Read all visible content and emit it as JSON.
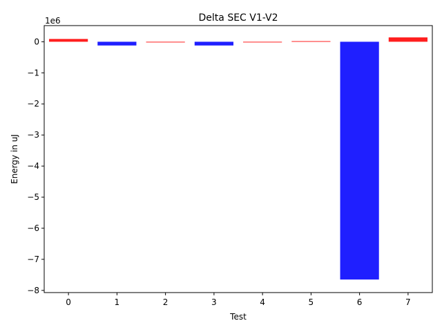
{
  "chart_data": {
    "type": "bar",
    "title": "Delta SEC V1-V2",
    "xlabel": "Test",
    "ylabel": "Energy in uJ",
    "offset_text": "1e6",
    "categories": [
      "0",
      "1",
      "2",
      "3",
      "4",
      "5",
      "6",
      "7"
    ],
    "values": [
      90000,
      -120000,
      0,
      -120000,
      0,
      20000,
      -7650000,
      140000
    ],
    "colors": [
      "#ff0000",
      "#0000ff",
      "#ff0000",
      "#0000ff",
      "#ff0000",
      "#ff0000",
      "#0000ff",
      "#ff0000"
    ],
    "yticks": [
      0,
      -1,
      -2,
      -3,
      -4,
      -5,
      -6,
      -7,
      -8
    ],
    "ytick_labels": [
      "0",
      "−1",
      "−2",
      "−3",
      "−4",
      "−5",
      "−6",
      "−7",
      "−8"
    ],
    "ylim": [
      -8070000,
      520000
    ],
    "ytick_scale": 1000000,
    "grid": false,
    "legend": "none"
  }
}
